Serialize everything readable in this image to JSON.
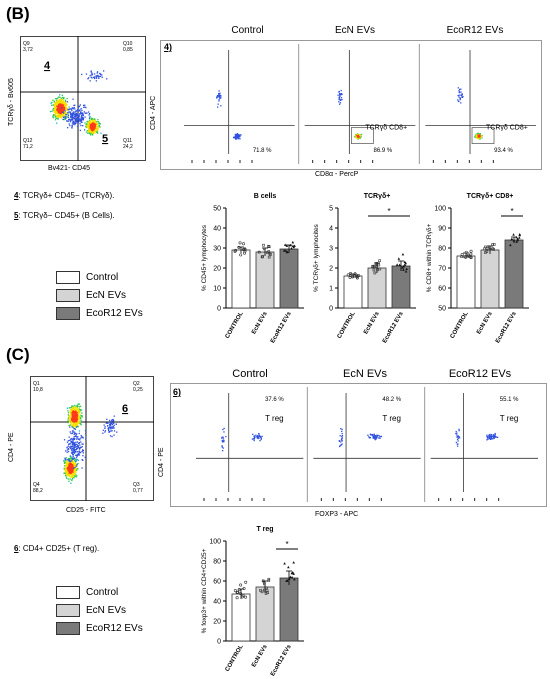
{
  "panel_b": {
    "letter": "(B)",
    "scatter": {
      "ylabel": "TCRγδ - Bv605",
      "xlabel": "Bv421- CD45",
      "q9": "Q9",
      "q9_val": "3,72",
      "q10": "Q10",
      "q10_val": "0,85",
      "q12": "Q12",
      "q12_val": "71,2",
      "q11": "Q11",
      "q11_val": "24,2",
      "gate4": "4",
      "gate5": "5"
    },
    "flow_row": {
      "index": "4)",
      "ylabel": "CD4 - APC",
      "xlabel": "CD8α - PercP",
      "columns": [
        {
          "title": "Control",
          "value": "71.8 %",
          "gate": ""
        },
        {
          "title": "EcN EVs",
          "value": "86.9 %",
          "gate": "TCRγδ CD8+"
        },
        {
          "title": "EcoR12 EVs",
          "value": "93.4 %",
          "gate": "TCRγδ CD8+"
        }
      ]
    },
    "notes": [
      {
        "num": "4",
        "text": ": TCRγδ+ CD45− (TCRγδ)."
      },
      {
        "num": "5",
        "text": ": TCRγδ− CD45+ (B Cells)."
      }
    ],
    "legend": [
      "Control",
      "EcN EVs",
      "EcoR12 EVs"
    ]
  },
  "panel_c": {
    "letter": "(C)",
    "scatter": {
      "ylabel": "CD4 - PE",
      "xlabel": "CD25 - FITC",
      "q1": "Q1",
      "q1_val": "10,8",
      "q2": "Q2",
      "q2_val": "0,25",
      "q4": "Q4",
      "q4_val": "88,2",
      "q3": "Q3",
      "q3_val": "0,77",
      "gate6": "6"
    },
    "flow_row": {
      "index": "6)",
      "ylabel": "CD4 - PE",
      "xlabel": "FOXP3 - APC",
      "columns": [
        {
          "title": "Control",
          "value": "37.6 %",
          "gate": "T reg"
        },
        {
          "title": "EcN EVs",
          "value": "48.2 %",
          "gate": "T reg"
        },
        {
          "title": "EcoR12 EVs",
          "value": "55.1 %",
          "gate": "T reg"
        }
      ]
    },
    "notes": [
      {
        "num": "6",
        "text": ": CD4+ CD25+ (T reg)."
      }
    ],
    "legend": [
      "Control",
      "EcN EVs",
      "EcoR12 EVs"
    ]
  },
  "colors": {
    "control": "#ffffff",
    "ecn": "#d4d4d4",
    "ecor12": "#7a7a7a"
  },
  "chart_data": [
    {
      "type": "bar",
      "title": "B cells",
      "ylabel": "% CD45+ lymphocytes",
      "categories": [
        "CONTROL",
        "EcN EVs",
        "EcoR12 EVs"
      ],
      "values": [
        29,
        28,
        29.5
      ],
      "errors": [
        1.5,
        2,
        2
      ],
      "ylim": [
        0,
        50
      ],
      "yticks": [
        0,
        10,
        20,
        30,
        40,
        50
      ],
      "significance": null
    },
    {
      "type": "bar",
      "title": "TCRγδ+",
      "ylabel": "% TCRγδ+ lymphocites",
      "categories": [
        "CONTROL",
        "EcN EVs",
        "EcoR12 EVs"
      ],
      "values": [
        1.6,
        2.0,
        2.1
      ],
      "errors": [
        0.1,
        0.25,
        0.25
      ],
      "ylim": [
        0,
        5
      ],
      "yticks": [
        0,
        1,
        2,
        3,
        4,
        5
      ],
      "significance": {
        "from": 1,
        "to": 2,
        "label": "*"
      }
    },
    {
      "type": "bar",
      "title": "TCRγδ+ CD8+",
      "ylabel": "% CD8+ within TCRγδ+",
      "categories": [
        "CONTROL",
        "EcN EVs",
        "EcoR12 EVs"
      ],
      "values": [
        76,
        79,
        84
      ],
      "errors": [
        1.5,
        2,
        1.5
      ],
      "ylim": [
        50,
        100
      ],
      "yticks": [
        50,
        60,
        70,
        80,
        90,
        100
      ],
      "significance": {
        "from": 2,
        "to": 2,
        "label": "*"
      }
    },
    {
      "type": "bar",
      "title": "T reg",
      "ylabel": "% foxp3+ within CD4+CD25+",
      "categories": [
        "CONTROL",
        "EcN EVs",
        "EcoR12 EVs"
      ],
      "values": [
        47,
        54,
        63
      ],
      "errors": [
        5,
        6,
        7
      ],
      "ylim": [
        0,
        100
      ],
      "yticks": [
        0,
        20,
        40,
        60,
        80,
        100
      ],
      "significance": {
        "from": 2,
        "to": 2,
        "label": "*"
      }
    }
  ]
}
